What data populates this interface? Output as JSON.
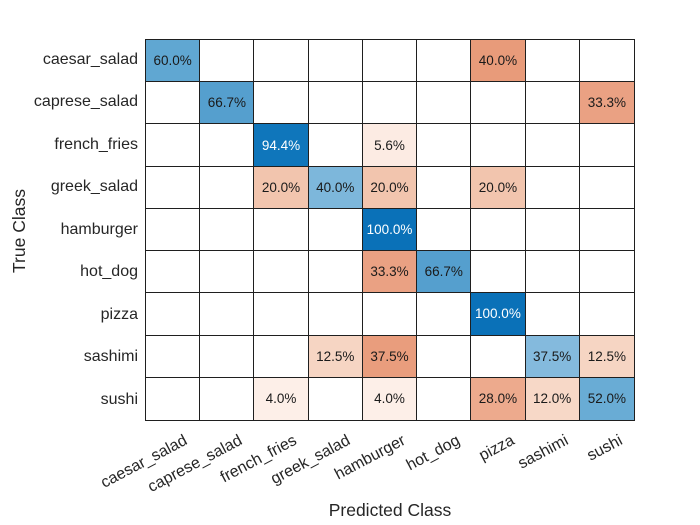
{
  "figure": {
    "background": "#ffffff",
    "grid_line_color": "#1f1f1f",
    "tick_label_color": "#262626",
    "axis_title_color": "#262626"
  },
  "chart_data": {
    "type": "heatmap",
    "subtype": "confusion-matrix",
    "title": "",
    "xlabel": "Predicted Class",
    "ylabel": "True Class",
    "legend": "none",
    "grid": "cell-borders",
    "x_tick_rotation_deg": -28,
    "values_unit": "percent-row-normalized",
    "diagonal_base_color": "#0b72b9",
    "off_diagonal_base_color": "#d95319",
    "classes": [
      "caesar_salad",
      "caprese_salad",
      "french_fries",
      "greek_salad",
      "hamburger",
      "hot_dog",
      "pizza",
      "sashimi",
      "sushi"
    ],
    "matrix": [
      [
        60.0,
        null,
        null,
        null,
        null,
        null,
        40.0,
        null,
        null
      ],
      [
        null,
        66.7,
        null,
        null,
        null,
        null,
        null,
        null,
        33.3
      ],
      [
        null,
        null,
        94.4,
        null,
        5.6,
        null,
        null,
        null,
        null
      ],
      [
        null,
        null,
        20.0,
        40.0,
        20.0,
        null,
        20.0,
        null,
        null
      ],
      [
        null,
        null,
        null,
        null,
        100.0,
        null,
        null,
        null,
        null
      ],
      [
        null,
        null,
        null,
        null,
        33.3,
        66.7,
        null,
        null,
        null
      ],
      [
        null,
        null,
        null,
        null,
        null,
        null,
        100.0,
        null,
        null
      ],
      [
        null,
        null,
        null,
        12.5,
        37.5,
        null,
        null,
        37.5,
        12.5
      ],
      [
        null,
        null,
        4.0,
        null,
        4.0,
        null,
        28.0,
        12.0,
        52.0
      ]
    ],
    "cells": [
      {
        "r": 0,
        "c": 0,
        "label": "60.0%",
        "bg": "#60a7d2",
        "fg": "#1a1a1a"
      },
      {
        "r": 0,
        "c": 6,
        "label": "40.0%",
        "bg": "#e89b7a",
        "fg": "#1a1a1a"
      },
      {
        "r": 1,
        "c": 1,
        "label": "66.7%",
        "bg": "#559fce",
        "fg": "#1a1a1a"
      },
      {
        "r": 1,
        "c": 8,
        "label": "33.3%",
        "bg": "#eaa183",
        "fg": "#1a1a1a"
      },
      {
        "r": 2,
        "c": 2,
        "label": "94.4%",
        "bg": "#0f76bb",
        "fg": "#ffffff"
      },
      {
        "r": 2,
        "c": 4,
        "label": "5.6%",
        "bg": "#fcebe3",
        "fg": "#1a1a1a"
      },
      {
        "r": 3,
        "c": 2,
        "label": "20.0%",
        "bg": "#f2c5ae",
        "fg": "#1a1a1a"
      },
      {
        "r": 3,
        "c": 3,
        "label": "40.0%",
        "bg": "#7db7db",
        "fg": "#1a1a1a"
      },
      {
        "r": 3,
        "c": 4,
        "label": "20.0%",
        "bg": "#f2c5ae",
        "fg": "#1a1a1a"
      },
      {
        "r": 3,
        "c": 6,
        "label": "20.0%",
        "bg": "#f2c5ae",
        "fg": "#1a1a1a"
      },
      {
        "r": 4,
        "c": 4,
        "label": "100.0%",
        "bg": "#0a71b8",
        "fg": "#ffffff"
      },
      {
        "r": 5,
        "c": 4,
        "label": "33.3%",
        "bg": "#eaa183",
        "fg": "#1a1a1a"
      },
      {
        "r": 5,
        "c": 5,
        "label": "66.7%",
        "bg": "#559fce",
        "fg": "#1a1a1a"
      },
      {
        "r": 6,
        "c": 6,
        "label": "100.0%",
        "bg": "#0a71b8",
        "fg": "#ffffff"
      },
      {
        "r": 7,
        "c": 3,
        "label": "12.5%",
        "bg": "#f6d5c3",
        "fg": "#1a1a1a"
      },
      {
        "r": 7,
        "c": 4,
        "label": "37.5%",
        "bg": "#e99d7d",
        "fg": "#1a1a1a"
      },
      {
        "r": 7,
        "c": 7,
        "label": "37.5%",
        "bg": "#84badd",
        "fg": "#1a1a1a"
      },
      {
        "r": 7,
        "c": 8,
        "label": "12.5%",
        "bg": "#f6d5c3",
        "fg": "#1a1a1a"
      },
      {
        "r": 8,
        "c": 2,
        "label": "4.0%",
        "bg": "#fdefe8",
        "fg": "#1a1a1a"
      },
      {
        "r": 8,
        "c": 4,
        "label": "4.0%",
        "bg": "#fdefe8",
        "fg": "#1a1a1a"
      },
      {
        "r": 8,
        "c": 6,
        "label": "28.0%",
        "bg": "#edaa8d",
        "fg": "#1a1a1a"
      },
      {
        "r": 8,
        "c": 7,
        "label": "12.0%",
        "bg": "#f7d8c7",
        "fg": "#1a1a1a"
      },
      {
        "r": 8,
        "c": 8,
        "label": "52.0%",
        "bg": "#69acd5",
        "fg": "#1a1a1a"
      }
    ]
  }
}
